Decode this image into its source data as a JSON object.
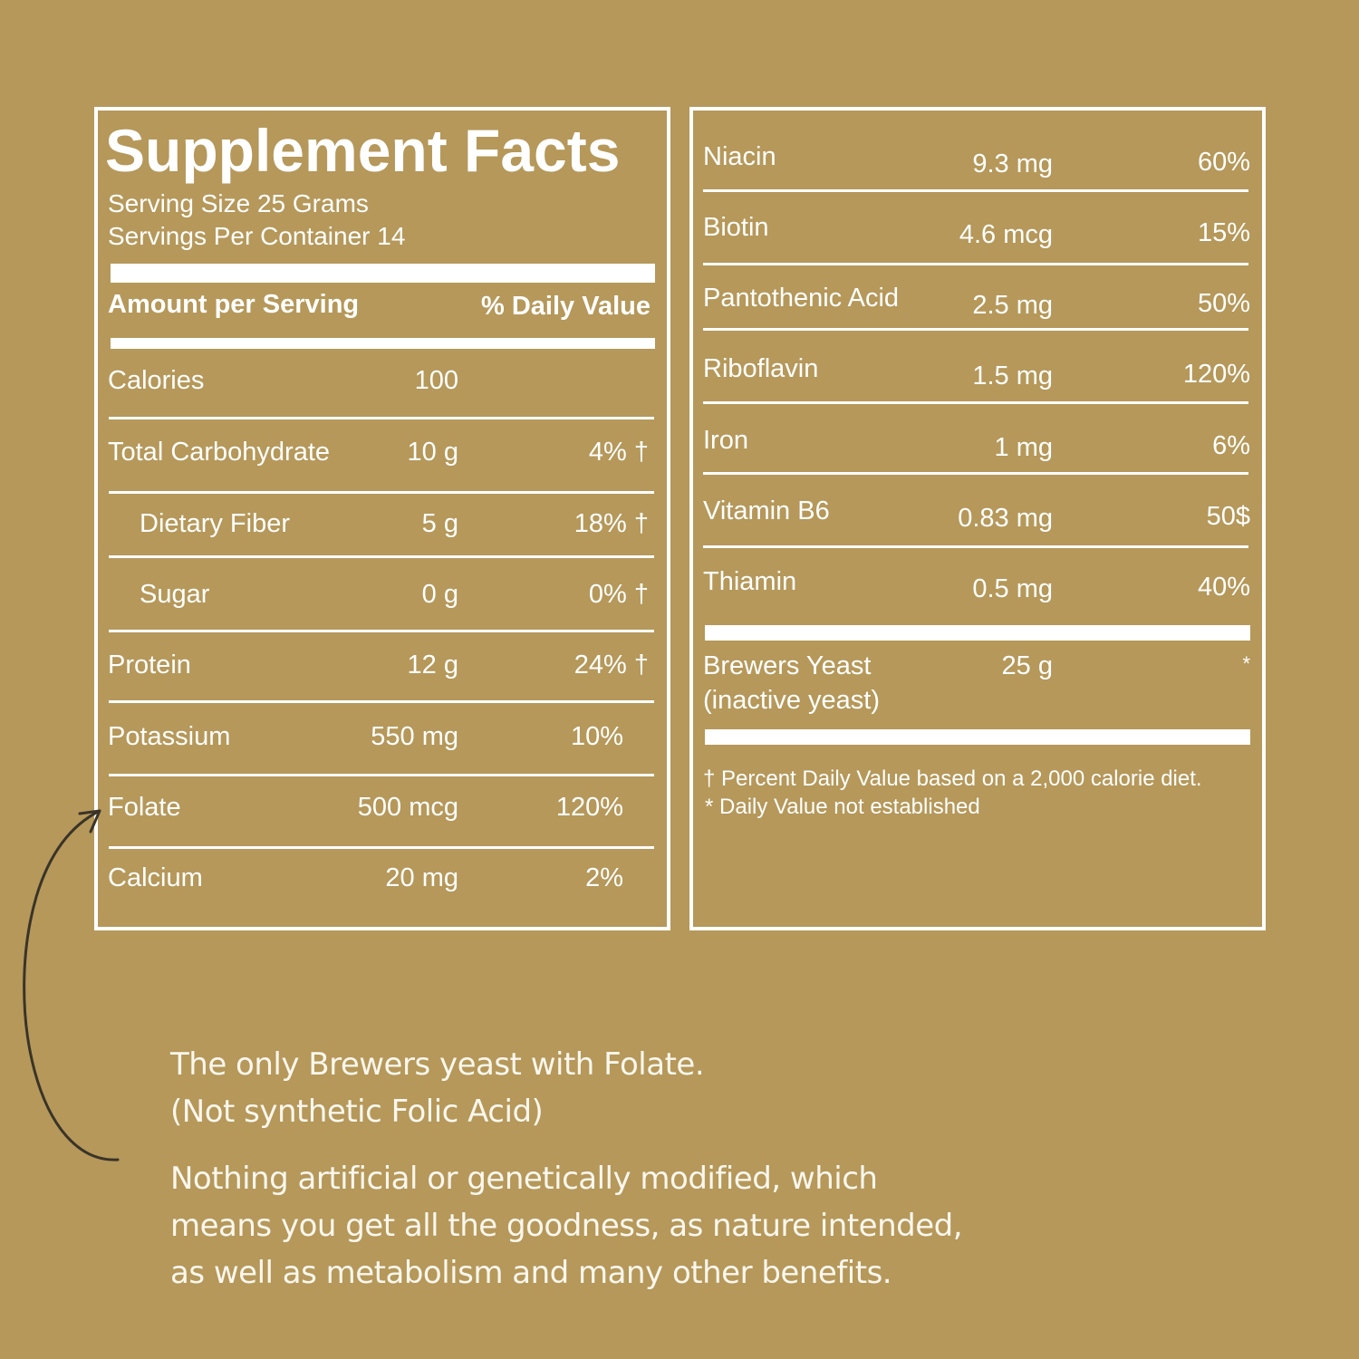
{
  "colors": {
    "background": "#b5985a",
    "text": "#ffffff",
    "arrow": "#3a3428"
  },
  "left": {
    "title": "Supplement Facts",
    "serving_size": "Serving Size 25 Grams",
    "servings_per_container": "Servings Per Container 14",
    "amount_header": "Amount per Serving",
    "dv_header": "% Daily Value",
    "rows": [
      {
        "name": "Calories",
        "amount": "100",
        "dv": "",
        "indent": false
      },
      {
        "name": "Total Carbohydrate",
        "amount": "10 g",
        "dv": "4% †",
        "indent": false
      },
      {
        "name": "Dietary Fiber",
        "amount": "5 g",
        "dv": "18% †",
        "indent": true
      },
      {
        "name": "Sugar",
        "amount": "0 g",
        "dv": "0% †",
        "indent": true
      },
      {
        "name": "Protein",
        "amount": "12 g",
        "dv": "24% †",
        "indent": false
      },
      {
        "name": "Potassium",
        "amount": "550 mg",
        "dv": "10%",
        "indent": false
      },
      {
        "name": "Folate",
        "amount": "500 mcg",
        "dv": "120%",
        "indent": false
      },
      {
        "name": "Calcium",
        "amount": "20 mg",
        "dv": "2%",
        "indent": false
      }
    ]
  },
  "right": {
    "rows": [
      {
        "name": "Niacin",
        "amount": "9.3 mg",
        "dv": "60%"
      },
      {
        "name": "Biotin",
        "amount": "4.6 mcg",
        "dv": "15%"
      },
      {
        "name": "Pantothenic Acid",
        "amount": "2.5 mg",
        "dv": "50%"
      },
      {
        "name": "Riboflavin",
        "amount": "1.5 mg",
        "dv": "120%"
      },
      {
        "name": "Iron",
        "amount": "1 mg",
        "dv": "6%"
      },
      {
        "name": "Vitamin B6",
        "amount": "0.83 mg",
        "dv": "50$"
      },
      {
        "name": "Thiamin",
        "amount": "0.5 mg",
        "dv": "40%"
      }
    ],
    "yeast": {
      "name_line1": "Brewers Yeast",
      "name_line2": "(inactive yeast)",
      "amount": "25 g",
      "dv": "*"
    },
    "footnote1": "† Percent Daily Value based on a 2,000 calorie diet.",
    "footnote2": "* Daily Value not established"
  },
  "blurb": {
    "line1": "The only Brewers yeast with Folate.",
    "line2": "(Not synthetic Folic Acid)",
    "line3": "Nothing artificial or genetically modified, which",
    "line4": "means you get all the goodness, as nature intended,",
    "line5": "as well as metabolism and many other benefits."
  }
}
